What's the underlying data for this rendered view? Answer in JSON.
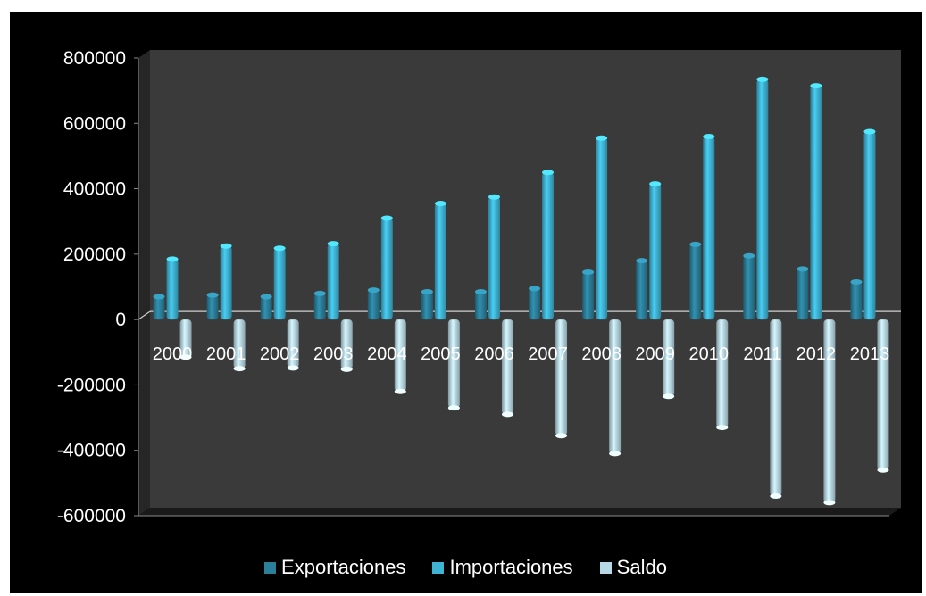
{
  "chart_data": {
    "type": "bar",
    "categories": [
      "2000",
      "2001",
      "2002",
      "2003",
      "2004",
      "2005",
      "2006",
      "2007",
      "2008",
      "2009",
      "2010",
      "2011",
      "2012",
      "2013"
    ],
    "series": [
      {
        "name": "Exportaciones",
        "color": "#2b7f9a",
        "values": [
          70000,
          75000,
          70000,
          80000,
          90000,
          85000,
          85000,
          95000,
          145000,
          180000,
          230000,
          195000,
          155000,
          115000
        ]
      },
      {
        "name": "Importaciones",
        "color": "#3fb3d3",
        "values": [
          185000,
          225000,
          218000,
          232000,
          310000,
          355000,
          375000,
          450000,
          555000,
          415000,
          560000,
          735000,
          715000,
          575000
        ]
      },
      {
        "name": "Saldo",
        "color": "#b8d7e4",
        "values": [
          -115000,
          -150000,
          -148000,
          -152000,
          -220000,
          -270000,
          -290000,
          -355000,
          -410000,
          -235000,
          -330000,
          -540000,
          -560000,
          -460000
        ]
      }
    ],
    "ylim": [
      -600000,
      800000
    ],
    "yticks": [
      "800000",
      "600000",
      "400000",
      "200000",
      "0",
      "-200000",
      "-400000",
      "-600000"
    ],
    "ytick_values": [
      800000,
      600000,
      400000,
      200000,
      0,
      -200000,
      -400000,
      -600000
    ],
    "legend_position": "bottom",
    "background": "#000000",
    "plot_background": "#3a3a3a"
  }
}
